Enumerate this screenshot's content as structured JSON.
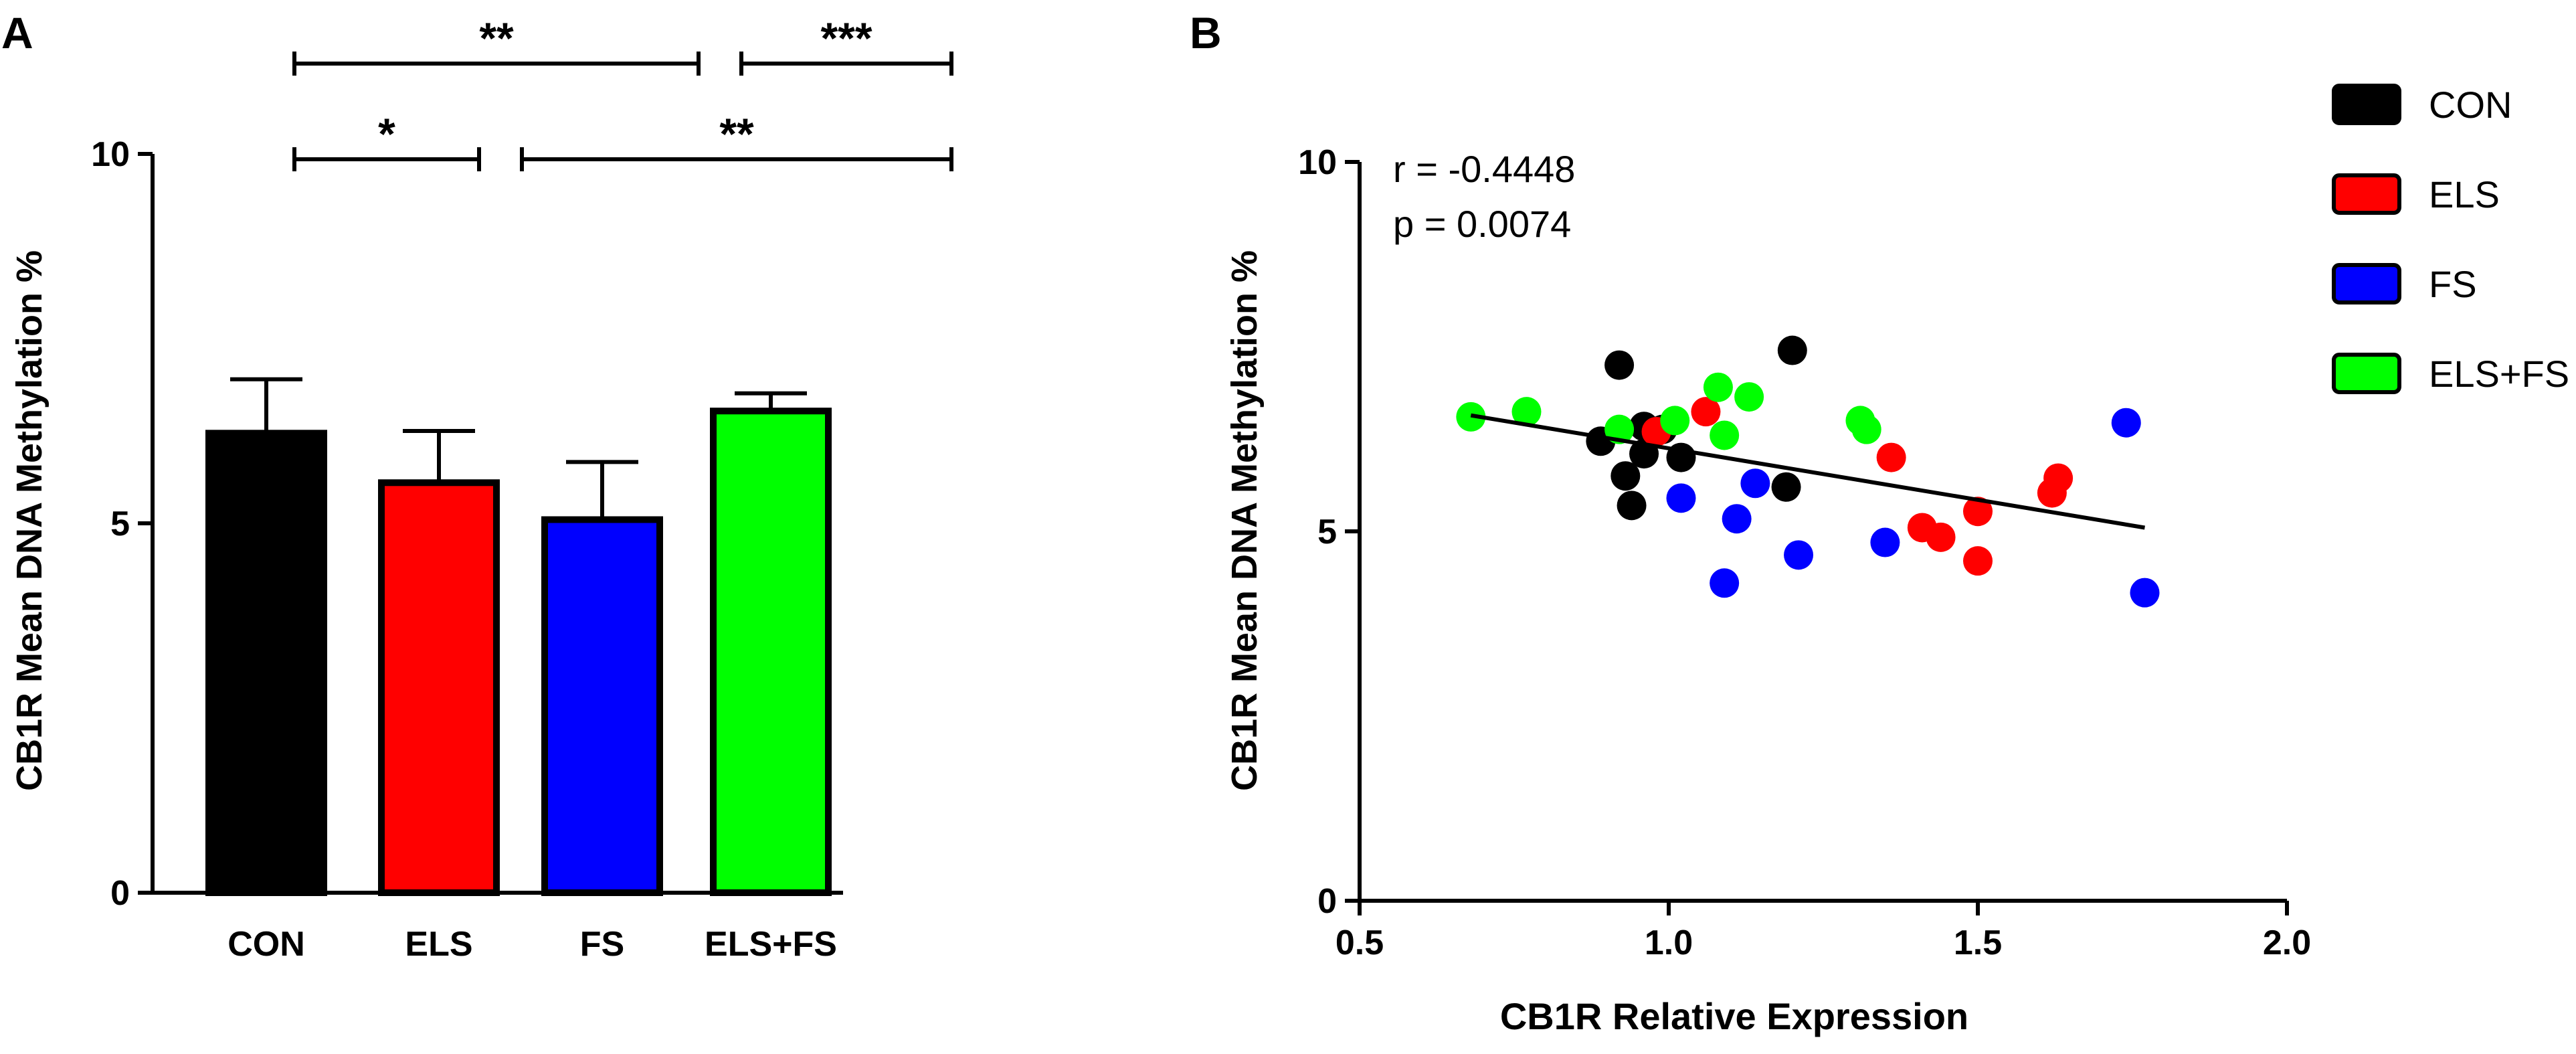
{
  "chart_data": [
    {
      "panel_label": "A",
      "type": "bar",
      "title": "",
      "xlabel": "",
      "ylabel": "CB1R Mean DNA Methylation %",
      "ylim": [
        0,
        10
      ],
      "yticks": [
        "0",
        "5",
        "10"
      ],
      "categories": [
        "CON",
        "ELS",
        "FS",
        "ELS+FS"
      ],
      "values": [
        6.22,
        5.55,
        5.05,
        6.52
      ],
      "errors": [
        0.73,
        0.7,
        0.78,
        0.24
      ],
      "colors": [
        "#000000",
        "#ff0000",
        "#0000ff",
        "#00ff00"
      ],
      "significance": [
        {
          "from": 0,
          "to": 2,
          "label": "**",
          "level": 2
        },
        {
          "from": 2,
          "to": 3,
          "label": "***",
          "level": 2
        },
        {
          "from": 0,
          "to": 1,
          "label": "*",
          "level": 1
        },
        {
          "from": 1,
          "to": 3,
          "label": "**",
          "level": 1
        }
      ]
    },
    {
      "panel_label": "B",
      "type": "scatter",
      "title": "",
      "xlabel": "CB1R Relative Expression",
      "ylabel": "CB1R Mean DNA Methylation %",
      "xlim": [
        0.5,
        2.0
      ],
      "ylim": [
        0,
        10
      ],
      "xticks": [
        "0.5",
        "1.0",
        "1.5",
        "2.0"
      ],
      "yticks": [
        "0",
        "5",
        "10"
      ],
      "annotation": [
        "r = -0.4448",
        "p = 0.0074"
      ],
      "regression": {
        "x": [
          0.68,
          1.77
        ],
        "y": [
          6.57,
          5.05
        ]
      },
      "series": [
        {
          "name": "CON",
          "color": "#000000",
          "x": [
            0.92,
            0.89,
            0.93,
            0.94,
            0.96,
            0.96,
            0.99,
            1.02,
            1.19,
            1.2
          ],
          "y": [
            7.25,
            6.22,
            5.75,
            5.35,
            6.05,
            6.42,
            6.38,
            6.0,
            5.6,
            7.45
          ]
        },
        {
          "name": "ELS",
          "color": "#ff0000",
          "x": [
            0.98,
            1.06,
            1.36,
            1.41,
            1.44,
            1.5,
            1.5,
            1.62,
            1.63
          ],
          "y": [
            6.35,
            6.62,
            6.0,
            5.05,
            4.92,
            5.27,
            4.6,
            5.52,
            5.72
          ]
        },
        {
          "name": "FS",
          "color": "#0000ff",
          "x": [
            1.02,
            1.09,
            1.11,
            1.14,
            1.21,
            1.35,
            1.74,
            1.77
          ],
          "y": [
            5.45,
            4.3,
            5.17,
            5.65,
            4.68,
            4.85,
            6.47,
            4.17
          ]
        },
        {
          "name": "ELS+FS",
          "color": "#00ff00",
          "x": [
            0.68,
            0.77,
            0.92,
            1.01,
            1.08,
            1.09,
            1.13,
            1.31,
            1.32
          ],
          "y": [
            6.55,
            6.62,
            6.38,
            6.5,
            6.95,
            6.3,
            6.82,
            6.5,
            6.38
          ]
        }
      ],
      "legend": {
        "placement": "top-right",
        "entries": [
          "CON",
          "ELS",
          "FS",
          "ELS+FS"
        ]
      }
    }
  ]
}
